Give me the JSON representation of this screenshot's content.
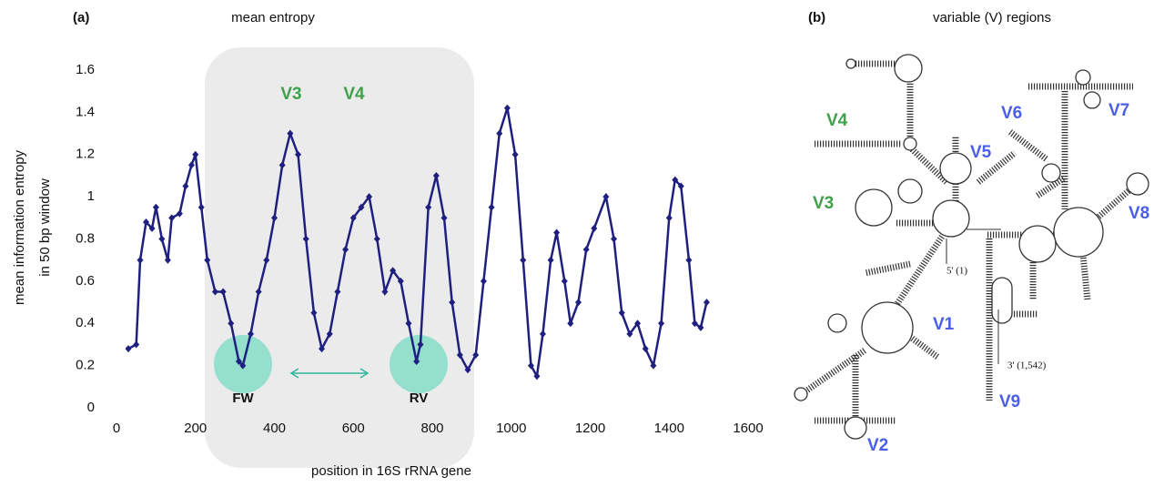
{
  "chart_data": {
    "type": "line",
    "panel_label": "(a)",
    "title": "mean entropy",
    "ylabel_lines": [
      "mean information entropy",
      "in 50 bp window"
    ],
    "xlabel": "position in 16S rRNA gene",
    "annotations": [
      "V3",
      "V4",
      "FW",
      "RV"
    ],
    "x": [
      30,
      50,
      60,
      75,
      90,
      100,
      115,
      130,
      140,
      160,
      175,
      190,
      200,
      215,
      230,
      250,
      270,
      290,
      310,
      320,
      340,
      360,
      380,
      400,
      420,
      440,
      460,
      480,
      500,
      520,
      540,
      560,
      580,
      600,
      620,
      640,
      660,
      680,
      700,
      720,
      740,
      760,
      770,
      790,
      810,
      830,
      850,
      870,
      890,
      910,
      930,
      950,
      970,
      990,
      1010,
      1030,
      1050,
      1065,
      1080,
      1100,
      1115,
      1135,
      1150,
      1170,
      1190,
      1210,
      1240,
      1260,
      1280,
      1300,
      1320,
      1340,
      1360,
      1380,
      1400,
      1415,
      1430,
      1450,
      1465,
      1480,
      1495
    ],
    "series": [
      {
        "color": "#1f1f7f",
        "values": [
          0.28,
          0.3,
          0.7,
          0.88,
          0.85,
          0.95,
          0.8,
          0.7,
          0.9,
          0.92,
          1.05,
          1.15,
          1.2,
          0.95,
          0.7,
          0.55,
          0.55,
          0.4,
          0.22,
          0.2,
          0.35,
          0.55,
          0.7,
          0.9,
          1.15,
          1.3,
          1.2,
          0.8,
          0.45,
          0.28,
          0.35,
          0.55,
          0.75,
          0.9,
          0.95,
          1.0,
          0.8,
          0.55,
          0.65,
          0.6,
          0.4,
          0.22,
          0.3,
          0.95,
          1.1,
          0.9,
          0.5,
          0.25,
          0.18,
          0.25,
          0.6,
          0.95,
          1.3,
          1.42,
          1.2,
          0.7,
          0.2,
          0.15,
          0.35,
          0.7,
          0.83,
          0.6,
          0.4,
          0.5,
          0.75,
          0.85,
          1.0,
          0.8,
          0.45,
          0.35,
          0.4,
          0.28,
          0.2,
          0.4,
          0.9,
          1.08,
          1.05,
          0.7,
          0.4,
          0.38,
          0.5
        ]
      }
    ],
    "xlim": [
      0,
      1600
    ],
    "xticks": [
      0,
      200,
      400,
      600,
      800,
      1000,
      1200,
      1400,
      1600
    ],
    "ylim": [
      0,
      1.6
    ],
    "yticks": [
      0,
      0.2,
      0.4,
      0.6,
      0.8,
      1,
      1.2,
      1.4,
      1.6
    ],
    "grid": false
  },
  "diagram": {
    "panel_label": "(b)",
    "title": "variable (V) regions",
    "regions": [
      "V1",
      "V2",
      "V3",
      "V4",
      "V5",
      "V6",
      "V7",
      "V8",
      "V9"
    ],
    "ends": [
      "5' (1)",
      "3' (1,542)"
    ]
  }
}
